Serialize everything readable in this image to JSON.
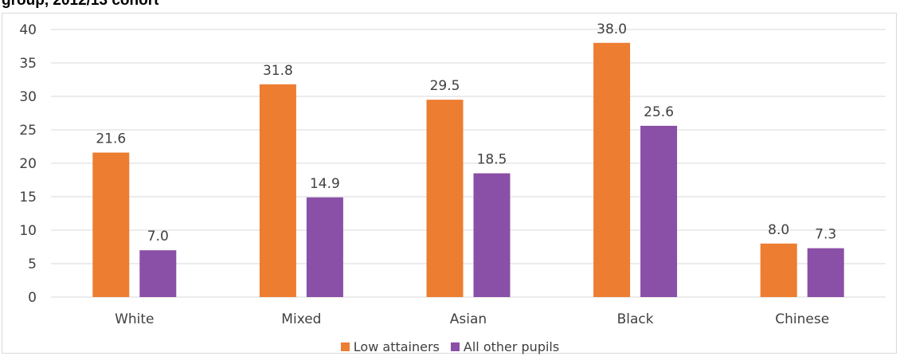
{
  "header": {
    "title_fragment": "group, 2012/13 cohort"
  },
  "colors": {
    "low_attainers": "#ed7d31",
    "all_other_pupils": "#8a4fa6",
    "gridline": "#d9d9d9",
    "text": "#404040"
  },
  "chart_data": {
    "type": "bar",
    "categories": [
      "White",
      "Mixed",
      "Asian",
      "Black",
      "Chinese"
    ],
    "series": [
      {
        "name": "Low attainers",
        "values": [
          21.6,
          31.8,
          29.5,
          38.0,
          8.0
        ],
        "labels": [
          "21.6",
          "31.8",
          "29.5",
          "38.0",
          "8.0"
        ]
      },
      {
        "name": "All other pupils",
        "values": [
          7.0,
          14.9,
          18.5,
          25.6,
          7.3
        ],
        "labels": [
          "7.0",
          "14.9",
          "18.5",
          "25.6",
          "7.3"
        ]
      }
    ],
    "yticks": [
      "0",
      "5",
      "10",
      "15",
      "20",
      "25",
      "30",
      "35",
      "40"
    ],
    "ylim": [
      0,
      40
    ],
    "grid": true,
    "legend_position": "bottom"
  }
}
